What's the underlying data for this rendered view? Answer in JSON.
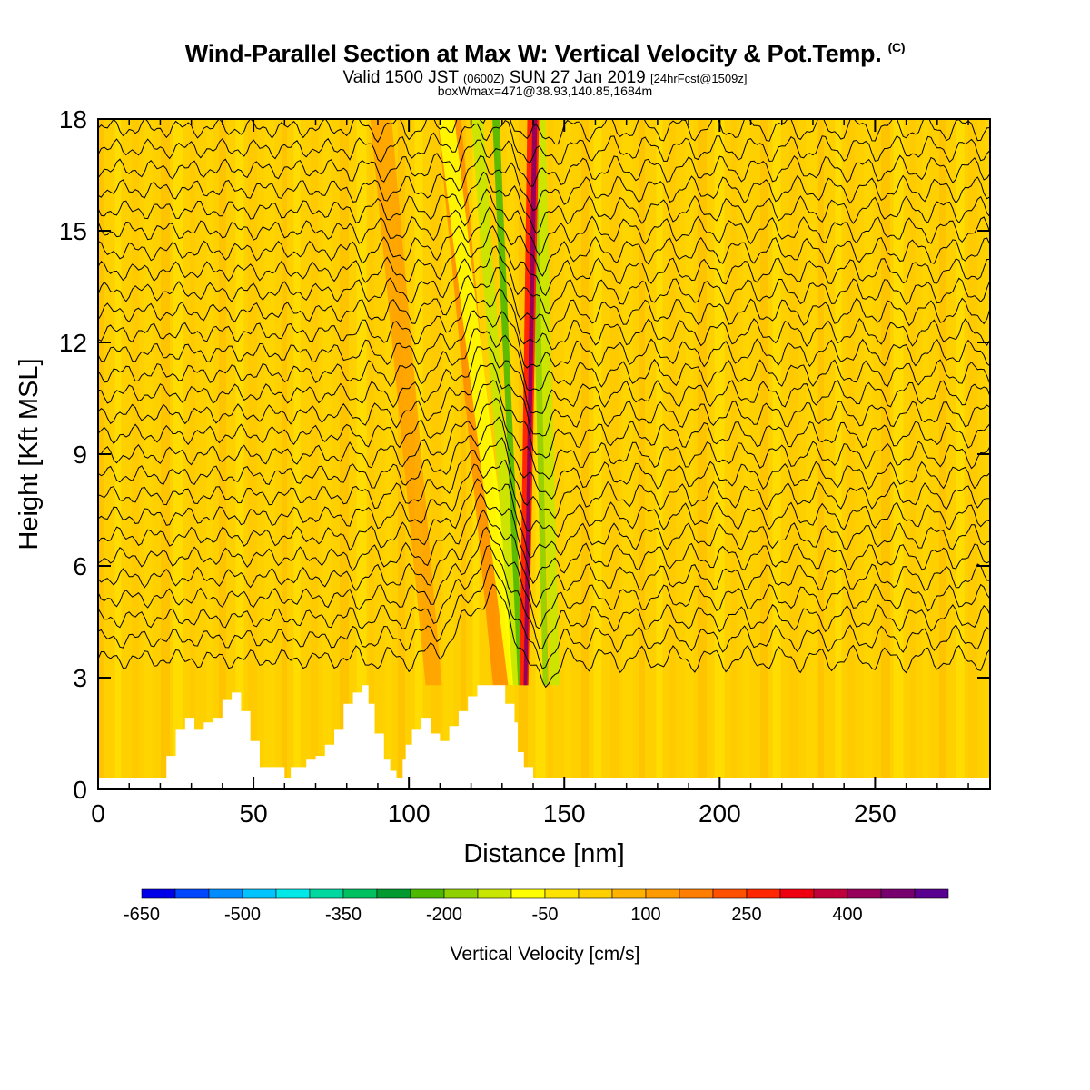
{
  "title": {
    "main": "Wind-Parallel Section at Max W: Vertical Velocity & Pot.Temp.",
    "copyright": "(C)",
    "valid_prefix": "Valid 1500 JST",
    "valid_utc": "(0600Z)",
    "valid_date": "SUN 27 Jan 2019",
    "valid_fcst": "[24hrFcst@1509z]",
    "boxwmax": "boxWmax=471@38.93,140.85,1684m"
  },
  "chart_data": {
    "type": "heatmap",
    "xlabel": "Distance [nm]",
    "ylabel": "Height [Kft MSL]",
    "xlim": [
      0,
      287
    ],
    "ylim": [
      0,
      18
    ],
    "xticks": [
      0,
      50,
      100,
      150,
      200,
      250
    ],
    "yticks": [
      0,
      3,
      6,
      9,
      12,
      15,
      18
    ],
    "grid": false,
    "terrain_profile": {
      "x": [
        0,
        20,
        22,
        25,
        28,
        31,
        34,
        37,
        40,
        43,
        46,
        49,
        52,
        55,
        60,
        61,
        62,
        67,
        70,
        73,
        76,
        79,
        82,
        85,
        87,
        89,
        92,
        94,
        96,
        98,
        99,
        101,
        104,
        107,
        110,
        113,
        116,
        119,
        122,
        125,
        128,
        131,
        134,
        135,
        137,
        140,
        287
      ],
      "height_kft": [
        0.3,
        0.3,
        0.9,
        1.6,
        1.9,
        1.6,
        1.8,
        1.9,
        2.4,
        2.6,
        2.1,
        1.3,
        0.6,
        0.6,
        0.3,
        0.3,
        0.6,
        0.8,
        0.9,
        1.2,
        1.6,
        2.3,
        2.6,
        2.8,
        2.3,
        1.5,
        0.8,
        0.5,
        0.3,
        0.8,
        1.2,
        1.6,
        1.9,
        1.5,
        1.3,
        1.7,
        2.1,
        2.5,
        2.8,
        2.8,
        2.8,
        2.3,
        1.8,
        1.0,
        0.6,
        0.3,
        0.3
      ]
    },
    "vertical_velocity_features": [
      {
        "name": "strongest updraft",
        "x_nm": 137,
        "y_kft_range": [
          3,
          18
        ],
        "w_cm_s": 471
      },
      {
        "name": "downdraft band",
        "x_nm_range": [
          120,
          136
        ],
        "y_kft_range": [
          3,
          18
        ],
        "w_cm_s": -200
      },
      {
        "name": "downdraft band (upper)",
        "x_nm_range": [
          140,
          158
        ],
        "y_kft_range": [
          3,
          18
        ],
        "w_cm_s": -150
      },
      {
        "name": "background",
        "w_cm_s": 0
      }
    ],
    "potential_temperature_contours": 27,
    "colorbar": {
      "label": "Vertical Velocity [cm/s]",
      "tick_labels": [
        "-650",
        "-500",
        "-350",
        "-200",
        "-50",
        "100",
        "250",
        "400"
      ],
      "colors": [
        "#0000e8",
        "#0046ff",
        "#008cff",
        "#00c3ff",
        "#00e8e8",
        "#00d8a0",
        "#00c060",
        "#009a30",
        "#4cb800",
        "#8ed000",
        "#c8e600",
        "#ffff00",
        "#ffe300",
        "#ffd000",
        "#ffb300",
        "#ff9a00",
        "#ff7d00",
        "#ff5000",
        "#ff2600",
        "#ee0010",
        "#c0003a",
        "#96005a",
        "#78006e",
        "#5a0090"
      ]
    }
  }
}
